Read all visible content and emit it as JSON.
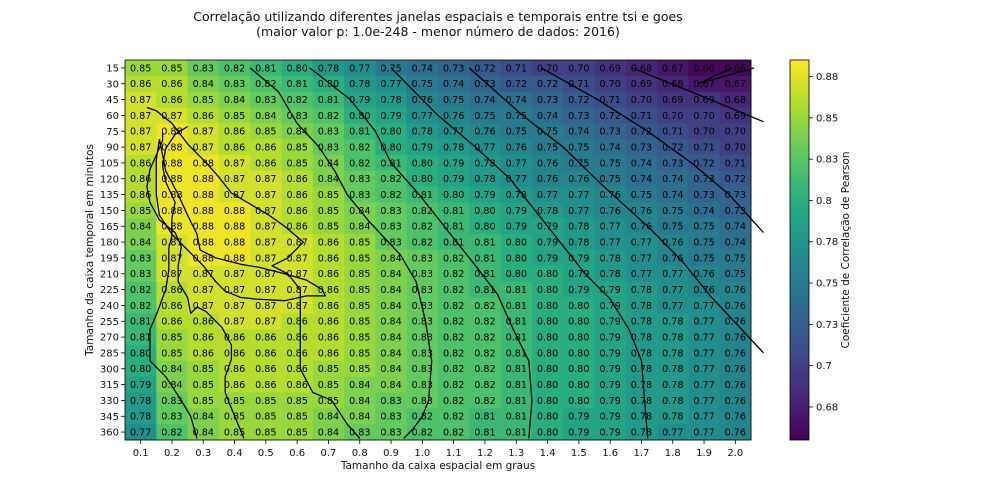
{
  "chart_data": {
    "type": "heatmap",
    "title": "Correlação utilizando diferentes janelas espaciais e temporais entre tsi e goes",
    "subtitle": "(maior valor p: 1.0e-248 - menor número de dados: 2016)",
    "xlabel": "Tamanho da caixa espacial em graus",
    "ylabel": "Tamanho da caixa temporal em minutos",
    "colorbar_label": "Coeficiente de Correlação de Pearson",
    "colormap": "viridis",
    "colorbar_range": [
      0.655,
      0.885
    ],
    "colorbar_ticks": [
      "0.68",
      "0.7",
      "0.73",
      "0.75",
      "0.78",
      "0.8",
      "0.83",
      "0.85",
      "0.88"
    ],
    "colorbar_tick_values": [
      0.675,
      0.7,
      0.725,
      0.75,
      0.775,
      0.8,
      0.825,
      0.85,
      0.875
    ],
    "x_ticks": [
      "0.1",
      "0.2",
      "0.3",
      "0.4",
      "0.5",
      "0.6",
      "0.7",
      "0.8",
      "0.9",
      "1.0",
      "1.1",
      "1.2",
      "1.3",
      "1.4",
      "1.5",
      "1.6",
      "1.7",
      "1.8",
      "1.9",
      "2.0"
    ],
    "y_ticks": [
      "15",
      "30",
      "45",
      "60",
      "75",
      "90",
      "105",
      "120",
      "135",
      "150",
      "165",
      "180",
      "195",
      "210",
      "225",
      "240",
      "255",
      "270",
      "285",
      "300",
      "315",
      "330",
      "345",
      "360"
    ],
    "values": [
      [
        0.85,
        0.85,
        0.83,
        0.82,
        0.81,
        0.8,
        0.78,
        0.77,
        0.75,
        0.74,
        0.73,
        0.72,
        0.71,
        0.7,
        0.7,
        0.69,
        0.68,
        0.67,
        0.66,
        0.66
      ],
      [
        0.86,
        0.86,
        0.84,
        0.83,
        0.82,
        0.81,
        0.8,
        0.78,
        0.77,
        0.75,
        0.74,
        0.73,
        0.72,
        0.72,
        0.71,
        0.7,
        0.69,
        0.68,
        0.67,
        0.67
      ],
      [
        0.87,
        0.86,
        0.85,
        0.84,
        0.83,
        0.82,
        0.81,
        0.79,
        0.78,
        0.76,
        0.75,
        0.74,
        0.74,
        0.73,
        0.72,
        0.71,
        0.7,
        0.69,
        0.69,
        0.68
      ],
      [
        0.87,
        0.87,
        0.86,
        0.85,
        0.84,
        0.83,
        0.82,
        0.8,
        0.79,
        0.77,
        0.76,
        0.75,
        0.75,
        0.74,
        0.73,
        0.72,
        0.71,
        0.7,
        0.7,
        0.69
      ],
      [
        0.87,
        0.88,
        0.87,
        0.86,
        0.85,
        0.84,
        0.83,
        0.81,
        0.8,
        0.78,
        0.77,
        0.76,
        0.75,
        0.75,
        0.74,
        0.73,
        0.72,
        0.71,
        0.7,
        0.7
      ],
      [
        0.87,
        0.88,
        0.87,
        0.86,
        0.86,
        0.85,
        0.83,
        0.82,
        0.8,
        0.79,
        0.78,
        0.77,
        0.76,
        0.75,
        0.75,
        0.74,
        0.73,
        0.72,
        0.71,
        0.7
      ],
      [
        0.86,
        0.88,
        0.88,
        0.87,
        0.86,
        0.85,
        0.84,
        0.82,
        0.81,
        0.8,
        0.79,
        0.78,
        0.77,
        0.76,
        0.75,
        0.75,
        0.74,
        0.73,
        0.72,
        0.71
      ],
      [
        0.86,
        0.88,
        0.88,
        0.87,
        0.87,
        0.86,
        0.84,
        0.83,
        0.82,
        0.8,
        0.79,
        0.78,
        0.77,
        0.76,
        0.76,
        0.75,
        0.74,
        0.74,
        0.73,
        0.72
      ],
      [
        0.86,
        0.88,
        0.88,
        0.87,
        0.87,
        0.86,
        0.85,
        0.83,
        0.82,
        0.81,
        0.8,
        0.79,
        0.78,
        0.77,
        0.77,
        0.76,
        0.75,
        0.74,
        0.73,
        0.73
      ],
      [
        0.85,
        0.88,
        0.88,
        0.88,
        0.87,
        0.86,
        0.85,
        0.84,
        0.83,
        0.82,
        0.81,
        0.8,
        0.79,
        0.78,
        0.77,
        0.76,
        0.76,
        0.75,
        0.74,
        0.73
      ],
      [
        0.84,
        0.88,
        0.88,
        0.88,
        0.87,
        0.86,
        0.85,
        0.84,
        0.83,
        0.82,
        0.81,
        0.8,
        0.79,
        0.79,
        0.78,
        0.77,
        0.76,
        0.75,
        0.75,
        0.74
      ],
      [
        0.84,
        0.87,
        0.88,
        0.88,
        0.87,
        0.87,
        0.86,
        0.85,
        0.83,
        0.82,
        0.81,
        0.81,
        0.8,
        0.79,
        0.78,
        0.77,
        0.77,
        0.76,
        0.75,
        0.74
      ],
      [
        0.83,
        0.87,
        0.88,
        0.88,
        0.87,
        0.87,
        0.86,
        0.85,
        0.84,
        0.83,
        0.82,
        0.81,
        0.8,
        0.79,
        0.79,
        0.78,
        0.77,
        0.76,
        0.75,
        0.75
      ],
      [
        0.83,
        0.87,
        0.87,
        0.87,
        0.87,
        0.87,
        0.86,
        0.85,
        0.84,
        0.83,
        0.82,
        0.81,
        0.8,
        0.8,
        0.79,
        0.78,
        0.77,
        0.77,
        0.76,
        0.75
      ],
      [
        0.82,
        0.86,
        0.87,
        0.87,
        0.87,
        0.87,
        0.86,
        0.85,
        0.84,
        0.83,
        0.82,
        0.81,
        0.81,
        0.8,
        0.79,
        0.79,
        0.78,
        0.77,
        0.76,
        0.76
      ],
      [
        0.82,
        0.86,
        0.87,
        0.87,
        0.87,
        0.87,
        0.86,
        0.85,
        0.84,
        0.83,
        0.82,
        0.82,
        0.81,
        0.8,
        0.8,
        0.79,
        0.78,
        0.77,
        0.77,
        0.76
      ],
      [
        0.81,
        0.86,
        0.86,
        0.87,
        0.87,
        0.86,
        0.86,
        0.85,
        0.84,
        0.83,
        0.82,
        0.82,
        0.81,
        0.8,
        0.8,
        0.79,
        0.78,
        0.78,
        0.77,
        0.76
      ],
      [
        0.81,
        0.85,
        0.86,
        0.86,
        0.86,
        0.86,
        0.86,
        0.85,
        0.84,
        0.83,
        0.82,
        0.82,
        0.81,
        0.8,
        0.8,
        0.79,
        0.78,
        0.78,
        0.77,
        0.76
      ],
      [
        0.8,
        0.85,
        0.86,
        0.86,
        0.86,
        0.86,
        0.86,
        0.85,
        0.84,
        0.83,
        0.82,
        0.82,
        0.81,
        0.8,
        0.8,
        0.79,
        0.78,
        0.78,
        0.77,
        0.76
      ],
      [
        0.8,
        0.84,
        0.85,
        0.86,
        0.86,
        0.86,
        0.85,
        0.85,
        0.84,
        0.83,
        0.82,
        0.82,
        0.81,
        0.8,
        0.8,
        0.79,
        0.78,
        0.78,
        0.77,
        0.76
      ],
      [
        0.79,
        0.84,
        0.85,
        0.86,
        0.86,
        0.86,
        0.85,
        0.84,
        0.84,
        0.83,
        0.82,
        0.82,
        0.81,
        0.8,
        0.8,
        0.79,
        0.78,
        0.78,
        0.77,
        0.76
      ],
      [
        0.78,
        0.83,
        0.85,
        0.85,
        0.85,
        0.85,
        0.85,
        0.84,
        0.83,
        0.83,
        0.82,
        0.82,
        0.81,
        0.8,
        0.8,
        0.79,
        0.78,
        0.78,
        0.77,
        0.76
      ],
      [
        0.78,
        0.83,
        0.84,
        0.85,
        0.85,
        0.85,
        0.84,
        0.84,
        0.83,
        0.82,
        0.82,
        0.81,
        0.81,
        0.8,
        0.79,
        0.79,
        0.78,
        0.78,
        0.77,
        0.76
      ],
      [
        0.77,
        0.82,
        0.84,
        0.85,
        0.85,
        0.85,
        0.84,
        0.83,
        0.83,
        0.82,
        0.82,
        0.81,
        0.81,
        0.8,
        0.79,
        0.79,
        0.78,
        0.77,
        0.77,
        0.76
      ]
    ],
    "contours": [
      {
        "name": "contour-070",
        "points": [
          [
            18.9,
            0
          ],
          [
            17.8,
            1
          ],
          [
            19.6,
            0
          ]
        ]
      },
      {
        "name": "contour-072",
        "points": [
          [
            15.7,
            0
          ],
          [
            18.2,
            2
          ],
          [
            19.9,
            3.4
          ]
        ]
      },
      {
        "name": "contour-074",
        "points": [
          [
            12.8,
            0
          ],
          [
            14.6,
            2
          ],
          [
            16.2,
            4
          ],
          [
            17.6,
            6
          ],
          [
            18.8,
            8
          ],
          [
            19.9,
            10.4
          ]
        ]
      },
      {
        "name": "contour-076",
        "points": [
          [
            10.5,
            0
          ],
          [
            12.2,
            3
          ],
          [
            13.5,
            5
          ],
          [
            14.8,
            7.5
          ],
          [
            16.2,
            10
          ],
          [
            17.3,
            12.2
          ],
          [
            18.2,
            14.4
          ],
          [
            19.1,
            16.3
          ],
          [
            19.9,
            18
          ]
        ]
      },
      {
        "name": "contour-078",
        "points": [
          [
            8.0,
            0
          ],
          [
            9.5,
            3
          ],
          [
            10.7,
            5
          ],
          [
            11.8,
            7
          ],
          [
            12.6,
            9
          ],
          [
            13.6,
            11.5
          ],
          [
            14.2,
            13
          ],
          [
            15.0,
            14.6
          ],
          [
            15.6,
            16.5
          ],
          [
            16.0,
            18.5
          ],
          [
            16.2,
            23.4
          ]
        ]
      },
      {
        "name": "contour-080",
        "points": [
          [
            5.4,
            0
          ],
          [
            6.7,
            2
          ],
          [
            7.5,
            4
          ],
          [
            8.0,
            6
          ],
          [
            8.9,
            8
          ],
          [
            9.9,
            10.5
          ],
          [
            10.7,
            12.5
          ],
          [
            11.4,
            14.3
          ],
          [
            11.9,
            16.5
          ],
          [
            12.4,
            18.5
          ],
          [
            12.5,
            21
          ],
          [
            12.4,
            23.4
          ]
        ]
      },
      {
        "name": "contour-082",
        "points": [
          [
            3.5,
            0
          ],
          [
            4.4,
            1.5
          ],
          [
            5.0,
            3.5
          ],
          [
            5.7,
            5
          ],
          [
            6.2,
            6.5
          ],
          [
            6.6,
            8
          ],
          [
            7.3,
            9.7
          ],
          [
            8.3,
            11.8
          ],
          [
            8.8,
            13.5
          ],
          [
            9.1,
            16
          ],
          [
            9.3,
            18.5
          ],
          [
            9.2,
            21
          ],
          [
            9.0,
            22
          ],
          [
            8.7,
            22.8
          ],
          [
            8.4,
            23.4
          ]
        ]
      },
      {
        "name": "contour-084",
        "points": [
          [
            7.0,
            23.4
          ],
          [
            6.6,
            22.5
          ],
          [
            6.1,
            21
          ],
          [
            5.5,
            20.5
          ],
          [
            5.1,
            19
          ],
          [
            5.1,
            17
          ],
          [
            5.1,
            15.4
          ],
          [
            5.1,
            14
          ],
          [
            4.7,
            13
          ],
          [
            4.2,
            12.5
          ],
          [
            4.7,
            12
          ],
          [
            5.2,
            11
          ],
          [
            4.6,
            10
          ],
          [
            4.1,
            9.3
          ],
          [
            3.5,
            8.6
          ],
          [
            2.9,
            7.9
          ],
          [
            2.5,
            6.9
          ],
          [
            2.1,
            6
          ],
          [
            1.5,
            4.8
          ],
          [
            1.0,
            3.5
          ],
          [
            0.5,
            2.7
          ],
          [
            0.2,
            2.5
          ]
        ]
      },
      {
        "name": "contour-086",
        "points": [
          [
            1.5,
            3.7
          ],
          [
            1.1,
            4.2
          ],
          [
            0.8,
            5.1
          ],
          [
            0.7,
            6.2
          ],
          [
            0.8,
            7.2
          ],
          [
            1.1,
            8.5
          ],
          [
            1.0,
            9.5
          ],
          [
            1.0,
            10.6
          ],
          [
            0.9,
            11.4
          ],
          [
            0.9,
            12.8
          ],
          [
            0.8,
            14
          ],
          [
            0.5,
            15.6
          ],
          [
            0.3,
            16.5
          ],
          [
            0.3,
            17.4
          ],
          [
            0.3,
            18.5
          ],
          [
            0.8,
            19.5
          ],
          [
            1.3,
            21
          ],
          [
            1.6,
            22
          ],
          [
            1.8,
            23.4
          ]
        ]
      },
      {
        "name": "contour-087",
        "points": [
          [
            3.3,
            23.4
          ],
          [
            2.9,
            21.5
          ],
          [
            2.7,
            20.5
          ],
          [
            2.7,
            19.5
          ],
          [
            2.9,
            18.4
          ],
          [
            2.9,
            17.5
          ],
          [
            2.6,
            16.4
          ],
          [
            2.1,
            15.4
          ],
          [
            1.8,
            15.1
          ],
          [
            1.6,
            15.5
          ],
          [
            1.5,
            14.5
          ],
          [
            1.2,
            13.5
          ],
          [
            1.2,
            12.5
          ],
          [
            1.3,
            11.3
          ],
          [
            1.1,
            10.4
          ],
          [
            0.6,
            9.6
          ],
          [
            0.3,
            8.5
          ],
          [
            0.2,
            7.5
          ],
          [
            0.3,
            6.4
          ],
          [
            0.5,
            5.5
          ],
          [
            0.7,
            4.6
          ],
          [
            0.7,
            4.1
          ]
        ]
      },
      {
        "name": "contour-088",
        "points": [
          [
            0.6,
            4.5
          ],
          [
            0.7,
            5.5
          ],
          [
            0.8,
            6.5
          ],
          [
            1.2,
            8
          ],
          [
            1.5,
            9.3
          ],
          [
            1.8,
            10.5
          ],
          [
            1.9,
            11.5
          ],
          [
            2.4,
            12
          ],
          [
            3.2,
            12.4
          ],
          [
            3.8,
            12.6
          ],
          [
            4.6,
            13
          ],
          [
            5.3,
            13.4
          ],
          [
            5.8,
            14
          ],
          [
            5.9,
            14.4
          ],
          [
            5.3,
            14.4
          ],
          [
            4.6,
            14.7
          ],
          [
            3.7,
            14.6
          ],
          [
            3.2,
            14.5
          ],
          [
            2.7,
            14.1
          ],
          [
            2.4,
            13.5
          ],
          [
            2.0,
            12.5
          ],
          [
            1.5,
            11.5
          ],
          [
            1.0,
            10.5
          ],
          [
            0.6,
            9.3
          ],
          [
            0.5,
            8
          ],
          [
            0.5,
            7
          ],
          [
            0.5,
            5.8
          ],
          [
            0.6,
            4.5
          ]
        ]
      }
    ]
  }
}
